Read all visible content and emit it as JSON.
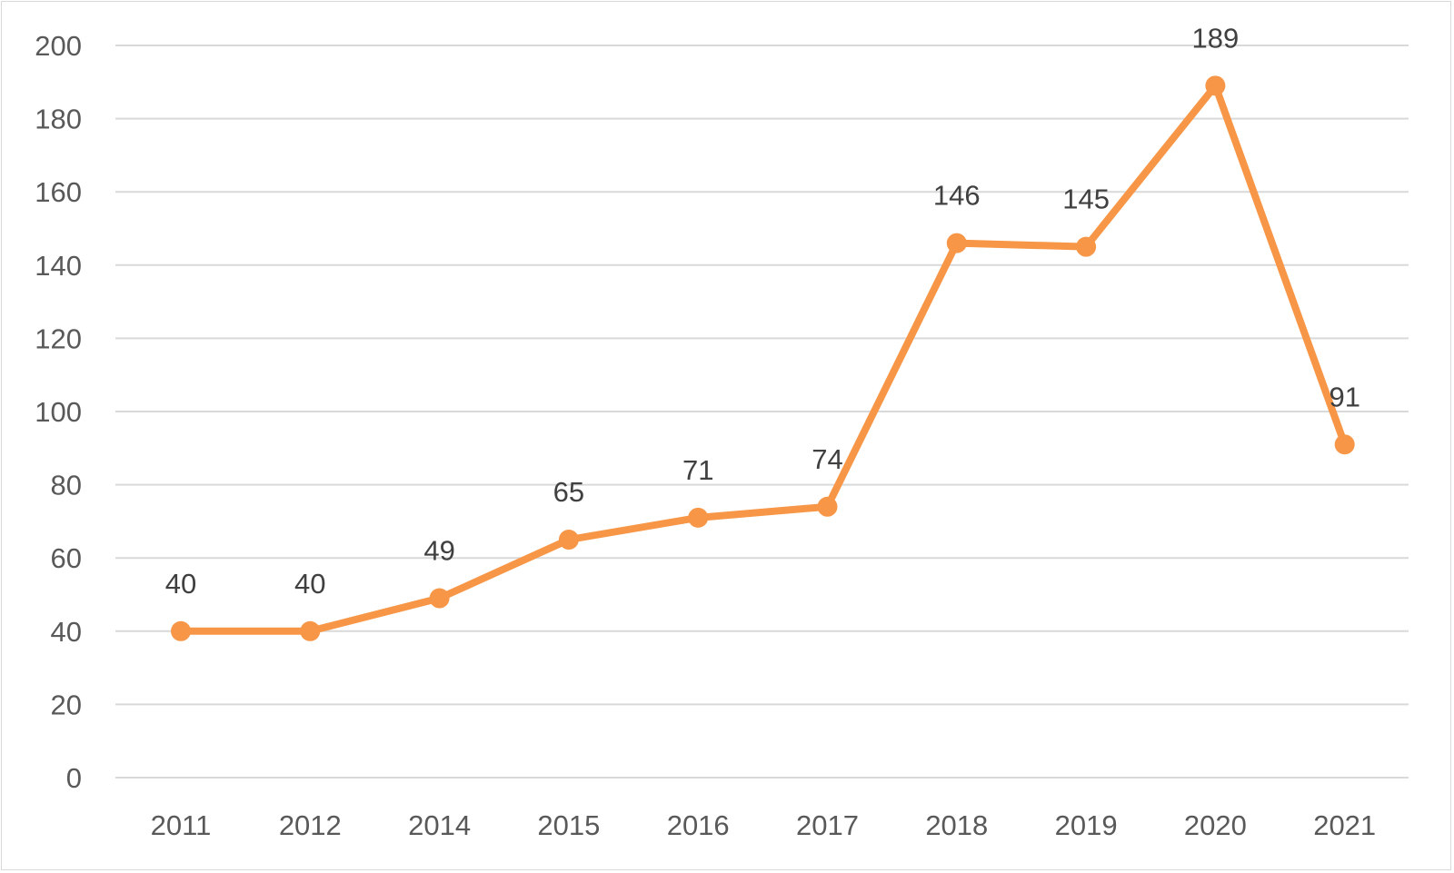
{
  "chart_data": {
    "type": "line",
    "title": "",
    "xlabel": "",
    "ylabel": "",
    "categories": [
      "2011",
      "2012",
      "2014",
      "2015",
      "2016",
      "2017",
      "2018",
      "2019",
      "2020",
      "2021"
    ],
    "series": [
      {
        "values": [
          40,
          40,
          49,
          65,
          71,
          74,
          146,
          145,
          189,
          91
        ],
        "color": "#f79646"
      }
    ],
    "ylim": [
      0,
      200
    ],
    "yticks": [
      0,
      20,
      40,
      60,
      80,
      100,
      120,
      140,
      160,
      180,
      200
    ],
    "grid": true,
    "legend": "none",
    "data_labels": true,
    "colors": {
      "line": "#f79646",
      "grid": "#d9d9d9",
      "tick_text": "#595959",
      "label_text": "#404040"
    }
  }
}
